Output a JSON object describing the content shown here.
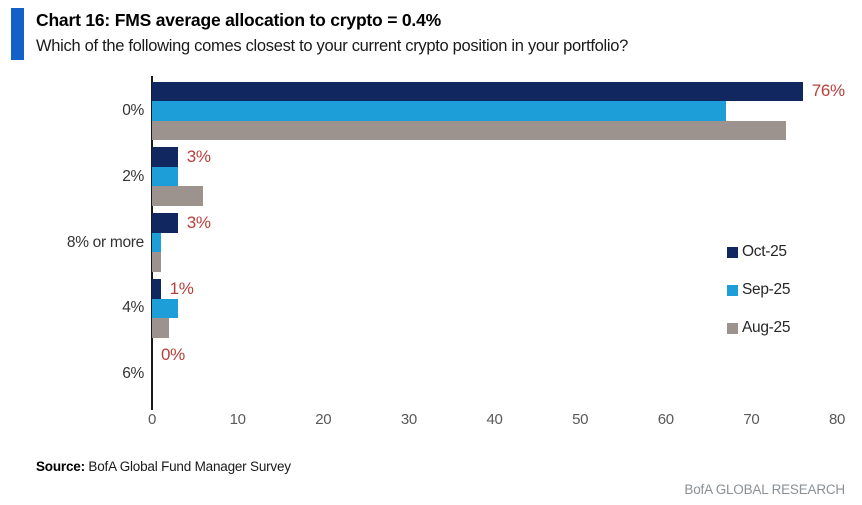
{
  "header": {
    "title": "Chart 16: FMS average allocation to crypto = 0.4%",
    "subtitle": "Which of the following comes closest to your current crypto position in your portfolio?",
    "accent_color": "#1161c9"
  },
  "chart_data": {
    "type": "bar",
    "orientation": "horizontal",
    "categories": [
      "0%",
      "2%",
      "8% or more",
      "4%",
      "6%"
    ],
    "series": [
      {
        "name": "Oct-25",
        "color": "#10275f",
        "values": [
          76,
          3,
          3,
          1,
          0
        ]
      },
      {
        "name": "Sep-25",
        "color": "#1e9ed9",
        "values": [
          67,
          3,
          1,
          3,
          0
        ]
      },
      {
        "name": "Aug-25",
        "color": "#9c928e",
        "values": [
          74,
          6,
          1,
          2,
          0
        ]
      }
    ],
    "value_labels": [
      "76%",
      "3%",
      "3%",
      "1%",
      "0%"
    ],
    "value_label_color": "#b6403c",
    "xlim": [
      0,
      80
    ],
    "x_ticks": [
      "0",
      "10",
      "20",
      "30",
      "40",
      "50",
      "60",
      "70",
      "80"
    ],
    "legend_position": "right",
    "grid": false,
    "axis_color": "#1a1a1a"
  },
  "footer": {
    "source_label": "Source:",
    "source_text": " BofA Global Fund Manager Survey",
    "branding": "BofA GLOBAL RESEARCH"
  }
}
